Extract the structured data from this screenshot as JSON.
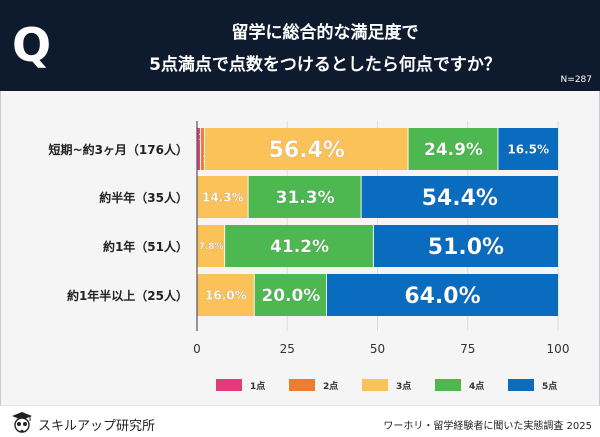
{
  "header": {
    "q_mark": "Q",
    "title_line1": "留学に総合的な満足度で",
    "title_line2": "5点満点で点数をつけるとしたら何点ですか？",
    "n_label": "N=287"
  },
  "footer": {
    "brand": "スキルアップ研究所",
    "source": "ワーホリ・留学経験者に聞いた実態調査 2025"
  },
  "chart_data": {
    "type": "bar",
    "orientation": "horizontal",
    "stacked": true,
    "title": "留学に総合的な満足度で5点満点で点数をつけるとしたら何点ですか？",
    "xlabel": "",
    "ylabel": "",
    "xlim": [
      0,
      100
    ],
    "xticks": [
      "0",
      "25",
      "50",
      "75",
      "100"
    ],
    "grid": true,
    "legend_position": "bottom",
    "categories": [
      "短期~約3ヶ月（176人）",
      "約半年（35人）",
      "約1年（51人）",
      "約1年半以上（25人）"
    ],
    "series": [
      {
        "name": "1点",
        "color": "#e23a7a",
        "values": [
          1.1,
          0,
          0,
          0
        ]
      },
      {
        "name": "2点",
        "color": "#ef7d2d",
        "values": [
          1.1,
          0,
          0,
          0
        ]
      },
      {
        "name": "3点",
        "color": "#fbc25a",
        "values": [
          56.4,
          14.3,
          7.8,
          16.0
        ]
      },
      {
        "name": "4点",
        "color": "#4cb84f",
        "values": [
          24.9,
          31.3,
          41.2,
          20.0
        ]
      },
      {
        "name": "5点",
        "color": "#0a6cbf",
        "values": [
          16.5,
          54.4,
          51.0,
          64.0
        ]
      }
    ],
    "data_labels": [
      [
        "1.1%",
        "1.1%",
        "56.4%",
        "24.9%",
        "16.5%"
      ],
      [
        "",
        "",
        "14.3%",
        "31.3%",
        "54.4%"
      ],
      [
        "",
        "",
        "7.8%",
        "41.2%",
        "51.0%"
      ],
      [
        "",
        "",
        "16.0%",
        "20.0%",
        "64.0%"
      ]
    ]
  }
}
